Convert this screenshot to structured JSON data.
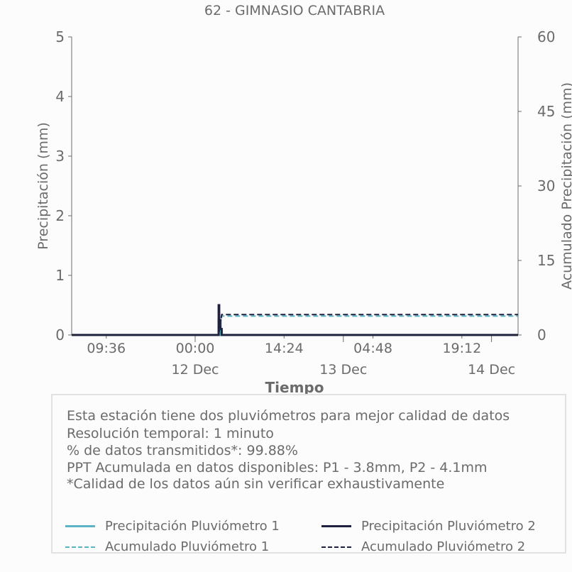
{
  "chart_data": {
    "type": "line",
    "title": "62 - GIMNASIO CANTABRIA",
    "xlabel": "Tiempo",
    "ylabel_left": "Precipitación (mm)",
    "ylabel_right": "Acumulado Precipitación (mm)",
    "ylim_left": [
      0,
      5
    ],
    "ylim_right": [
      0,
      60
    ],
    "yticks_left": [
      "0",
      "1",
      "2",
      "3",
      "4",
      "5"
    ],
    "yticks_right": [
      "0",
      "15",
      "30",
      "45",
      "60"
    ],
    "x_ticks": [
      {
        "label": "09:36",
        "date": "",
        "h": -14.4
      },
      {
        "label": "00:00",
        "date": "12 Dec",
        "h": 0
      },
      {
        "label": "14:24",
        "date": "",
        "h": 14.4
      },
      {
        "label": "",
        "date": "13 Dec",
        "h": 24
      },
      {
        "label": "04:48",
        "date": "",
        "h": 28.8
      },
      {
        "label": "19:12",
        "date": "",
        "h": 43.2
      },
      {
        "label": "",
        "date": "14 Dec",
        "h": 48
      }
    ],
    "x_range_hours": [
      -20,
      52.3
    ],
    "series": [
      {
        "name": "Precipitación Pluviómetro 1",
        "color": "#5ab4c4",
        "dash": false,
        "x": [
          -20,
          3.8,
          3.8,
          3.9,
          3.9,
          4.0,
          4.0,
          52.3
        ],
        "y": [
          0,
          0,
          0.25,
          0.25,
          0.1,
          0.1,
          0,
          0
        ]
      },
      {
        "name": "Precipitación Pluviómetro 2",
        "color": "#1f2140",
        "dash": false,
        "x": [
          -20,
          3.8,
          3.8,
          3.9,
          3.9,
          4.1,
          4.1,
          4.3,
          4.3,
          52.3
        ],
        "y": [
          0,
          0,
          0.5,
          0.5,
          0.25,
          0.25,
          0.1,
          0.1,
          0,
          0
        ]
      },
      {
        "name": "Acumulado Pluviómetro 1",
        "color": "#5ab4c4",
        "dash": true,
        "x": [
          -20,
          3.8,
          4.3,
          52.3
        ],
        "y_right": [
          0,
          0,
          3.8,
          3.8
        ]
      },
      {
        "name": "Acumulado Pluviómetro 2",
        "color": "#1f2140",
        "dash": true,
        "x": [
          -20,
          3.8,
          4.3,
          52.3
        ],
        "y_right": [
          0,
          0,
          4.1,
          4.1
        ]
      }
    ]
  },
  "info": {
    "line1": "Esta estación tiene dos pluviómetros para mejor calidad de datos",
    "line2": "Resolución temporal: 1 minuto",
    "line3": "% de datos transmitidos*: 99.88%",
    "line4": "PPT Acumulada en datos disponibles: P1 - 3.8mm, P2 - 4.1mm",
    "line5": "*Calidad de los datos aún sin verificar exhaustivamente"
  },
  "legend": {
    "item1": "Precipitación Pluviómetro 1",
    "item2": "Precipitación Pluviómetro 2",
    "item3": "Acumulado Pluviómetro 1",
    "item4": "Acumulado Pluviómetro 2"
  }
}
